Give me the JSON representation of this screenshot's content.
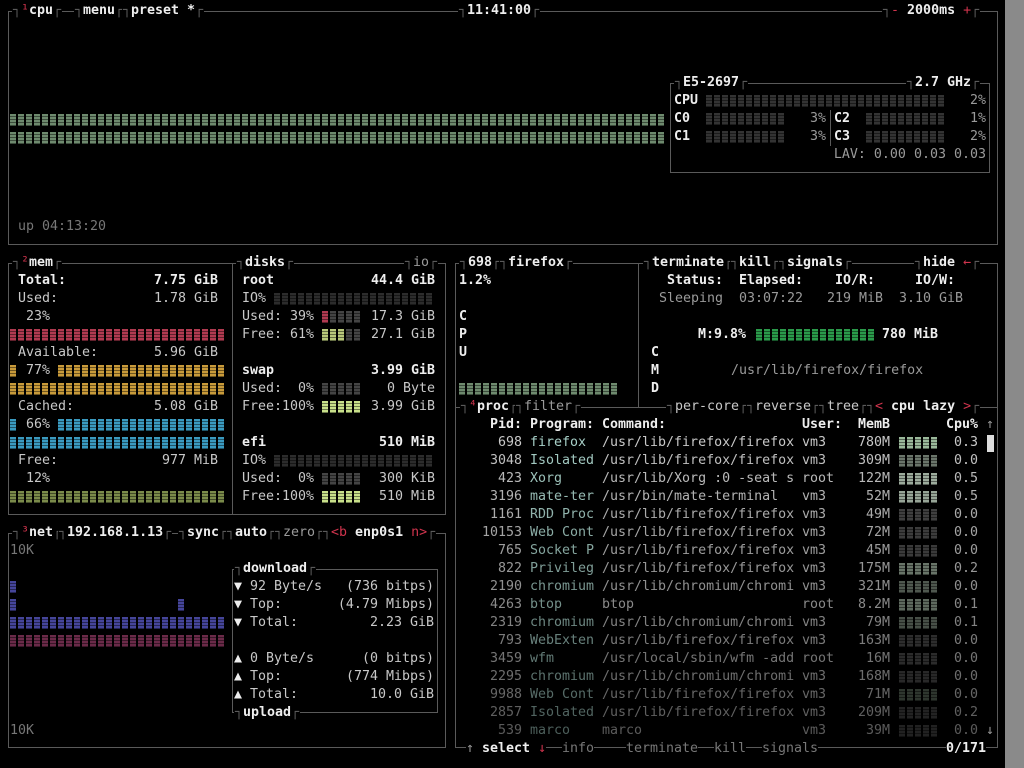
{
  "colors": {
    "accent": "#d0344d",
    "border": "#5a5a5a",
    "cpu_graph": "#6e8a6e",
    "mem_used": "#b03a50",
    "mem_available": "#c89a3a",
    "mem_cached": "#3a9ac0",
    "mem_free": "#7a8a4a",
    "net_download": "#45459a",
    "net_upload": "#6a2a48",
    "proc_mem_bar": "#2a9a4a"
  },
  "cpu": {
    "title_num": "¹",
    "title": "cpu",
    "menu": "menu",
    "preset": "preset *",
    "clock": "11:41:00",
    "interval_minus": "-",
    "interval": "2000ms",
    "interval_plus": "+",
    "uptime": "up 04:13:20",
    "model": "E5-2697",
    "freq": "2.7 GHz",
    "total_label": "CPU",
    "total_pct": "2%",
    "total_value": 2,
    "cores": [
      {
        "label": "C0",
        "pct": "3%",
        "value": 3
      },
      {
        "label": "C1",
        "pct": "3%",
        "value": 3
      },
      {
        "label": "C2",
        "pct": "1%",
        "value": 1
      },
      {
        "label": "C3",
        "pct": "2%",
        "value": 2
      }
    ],
    "lav": "LAV: 0.00 0.03 0.03"
  },
  "mem": {
    "title_num": "²",
    "title": "mem",
    "total_label": "Total:",
    "total": "7.75 GiB",
    "used_label": "Used:",
    "used": "1.78 GiB",
    "used_pct": "23%",
    "available_label": "Available:",
    "available": "5.96 GiB",
    "available_pct": "77%",
    "cached_label": "Cached:",
    "cached": "5.08 GiB",
    "cached_pct": "66%",
    "free_label": "Free:",
    "free": "977 MiB",
    "free_pct": "12%"
  },
  "disks": {
    "title": "disks",
    "io": "io",
    "root": {
      "name": "root",
      "size": "44.4 GiB",
      "io": "IO%",
      "used": "Used: 39%",
      "used_val": "17.3 GiB",
      "free": "Free: 61%",
      "free_val": "27.1 GiB"
    },
    "swap": {
      "name": "swap",
      "size": "3.99 GiB",
      "used": "Used:  0%",
      "used_val": "0 Byte",
      "free": "Free:100%",
      "free_val": "3.99 GiB"
    },
    "efi": {
      "name": "efi",
      "size": "510 MiB",
      "io": "IO%",
      "used": "Used:  0%",
      "used_val": "300 KiB",
      "free": "Free:100%",
      "free_val": "510 MiB"
    }
  },
  "net": {
    "title_num": "³",
    "title": "net",
    "ip": "192.168.1.13",
    "sync": "sync",
    "auto": "auto",
    "zero": "zero",
    "prev": "<b",
    "iface": "enp0s1",
    "next": "n>",
    "scale_top": "10K",
    "scale_bottom": "10K",
    "download": {
      "label": "download",
      "rate": "92 Byte/s",
      "rate_bits": "(736 bitps)",
      "top_label": "Top:",
      "top": "(4.79 Mibps)",
      "total_label": "Total:",
      "total": "2.23 GiB"
    },
    "upload": {
      "label": "upload",
      "rate": "0 Byte/s",
      "rate_bits": "(0 bitps)",
      "top_label": "Top:",
      "top": "(774 Mibps)",
      "total_label": "Total:",
      "total": "10.0 GiB"
    },
    "down_arrow": "▼",
    "up_arrow": "▲"
  },
  "detail": {
    "pid": "698",
    "name": "firefox",
    "cpu_pct": "1.2%",
    "terminate": "terminate",
    "kill": "kill",
    "signals": "signals",
    "hide": "hide",
    "hide_arrow": "←",
    "status_label": "Status:",
    "elapsed_label": "Elapsed:",
    "ior_label": "IO/R:",
    "iow_label": "IO/W:",
    "status": "Sleeping",
    "elapsed": "03:07:22",
    "ior": "219 MiB",
    "iow": "3.10 GiB",
    "cpu_letters": [
      "C",
      "P",
      "U"
    ],
    "cmd_letters": [
      "C",
      "M",
      "D"
    ],
    "mem_pct": "M:9.8%",
    "mem": "780 MiB",
    "cmd": "/usr/lib/firefox/firefox"
  },
  "proc": {
    "title_num": "⁴",
    "title": "proc",
    "filter": "filter",
    "per_core": "per-core",
    "reverse": "reverse",
    "tree": "tree",
    "sort_prev": "<",
    "sort": "cpu lazy",
    "sort_next": ">",
    "headers": {
      "pid": "Pid:",
      "program": "Program:",
      "command": "Command:",
      "user": "User:",
      "mem": "MemB",
      "cpu": "Cpu%"
    },
    "rows": [
      [
        "698",
        "firefox",
        "/usr/lib/firefox/firefox",
        "vm3",
        "780M",
        "0.3"
      ],
      [
        "3048",
        "Isolated",
        "/usr/lib/firefox/firefox",
        "vm3",
        "309M",
        "0.0"
      ],
      [
        "423",
        "Xorg",
        "/usr/lib/Xorg :0 -seat s",
        "root",
        "122M",
        "0.5"
      ],
      [
        "3196",
        "mate-ter",
        "/usr/bin/mate-terminal",
        "vm3",
        "52M",
        "0.5"
      ],
      [
        "1161",
        "RDD Proc",
        "/usr/lib/firefox/firefox",
        "vm3",
        "49M",
        "0.0"
      ],
      [
        "10153",
        "Web Cont",
        "/usr/lib/firefox/firefox",
        "vm3",
        "72M",
        "0.0"
      ],
      [
        "765",
        "Socket P",
        "/usr/lib/firefox/firefox",
        "vm3",
        "45M",
        "0.0"
      ],
      [
        "822",
        "Privileg",
        "/usr/lib/firefox/firefox",
        "vm3",
        "175M",
        "0.2"
      ],
      [
        "2190",
        "chromium",
        "/usr/lib/chromium/chromi",
        "vm3",
        "321M",
        "0.0"
      ],
      [
        "4263",
        "btop",
        "btop",
        "root",
        "8.2M",
        "0.1"
      ],
      [
        "2319",
        "chromium",
        "/usr/lib/chromium/chromi",
        "vm3",
        "79M",
        "0.1"
      ],
      [
        "793",
        "WebExten",
        "/usr/lib/firefox/firefox",
        "vm3",
        "163M",
        "0.0"
      ],
      [
        "3459",
        "wfm",
        "/usr/local/sbin/wfm -add",
        "root",
        "16M",
        "0.0"
      ],
      [
        "2295",
        "chromium",
        "/usr/lib/chromium/chromi",
        "vm3",
        "168M",
        "0.0"
      ],
      [
        "9988",
        "Web Cont",
        "/usr/lib/firefox/firefox",
        "vm3",
        "71M",
        "0.0"
      ],
      [
        "2857",
        "Isolated",
        "/usr/lib/firefox/firefox",
        "vm3",
        "209M",
        "0.2"
      ],
      [
        "539",
        "marco",
        "marco",
        "vm3",
        "39M",
        "0.0"
      ]
    ],
    "scroll_up": "↑",
    "scroll_down": "↓",
    "footer": {
      "up": "↑",
      "select": "select",
      "down": "↓",
      "info": "info",
      "terminate": "terminate",
      "kill": "kill",
      "signals": "signals",
      "count": "0/171"
    }
  }
}
